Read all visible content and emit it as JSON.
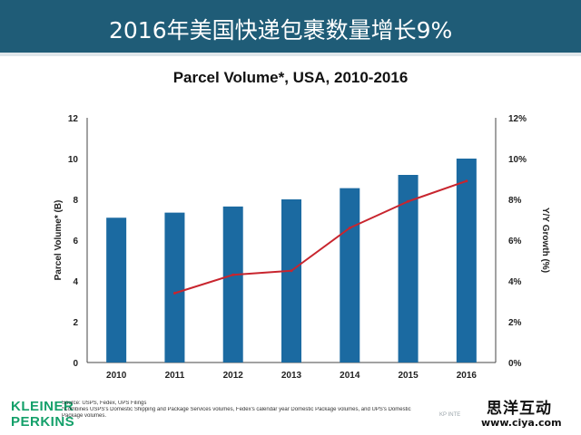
{
  "header": {
    "title": "2016年美国快递包裹数量增长9%"
  },
  "footer": {
    "logo_line1": "KLEINER",
    "logo_line2": "PERKINS",
    "source": "Source: USPS, Fedex, UPS Filings",
    "note_line1": "*Combines USPS's Domestic Shipping and Package Services volumes, Fedex's calendar year Domestic Package volumes, and UPS's Domestic",
    "note_line2": "Package volumes.",
    "page_ref": "KP INTE",
    "watermark_cn": "思洋互动",
    "watermark_url": "www.ciya.com"
  },
  "colors": {
    "header_bg": "#1f5c77",
    "bar": "#1b6aa1",
    "line": "#c8252e",
    "logo": "#14a06a"
  },
  "chart_data": {
    "type": "bar",
    "title": "Parcel Volume*, USA, 2010-2016",
    "categories": [
      "2010",
      "2011",
      "2012",
      "2013",
      "2014",
      "2015",
      "2016"
    ],
    "xlabel": "",
    "ylabel": "Parcel Volume* (B)",
    "y2label": "Y/Y Growth (%)",
    "ylim": [
      0,
      12
    ],
    "y2lim": [
      0,
      12
    ],
    "yticks": [
      "0",
      "2",
      "4",
      "6",
      "8",
      "10",
      "12"
    ],
    "y2ticks": [
      "0%",
      "2%",
      "4%",
      "6%",
      "8%",
      "10%",
      "12%"
    ],
    "series": [
      {
        "name": "Parcel Volume (B)",
        "type": "bar",
        "axis": "left",
        "values": [
          7.1,
          7.35,
          7.65,
          8.0,
          8.55,
          9.2,
          10.0
        ]
      },
      {
        "name": "Y/Y Growth (%)",
        "type": "line",
        "axis": "right",
        "values": [
          null,
          3.4,
          4.3,
          4.5,
          6.6,
          7.9,
          8.9
        ]
      }
    ],
    "grid": false,
    "legend": "none"
  }
}
